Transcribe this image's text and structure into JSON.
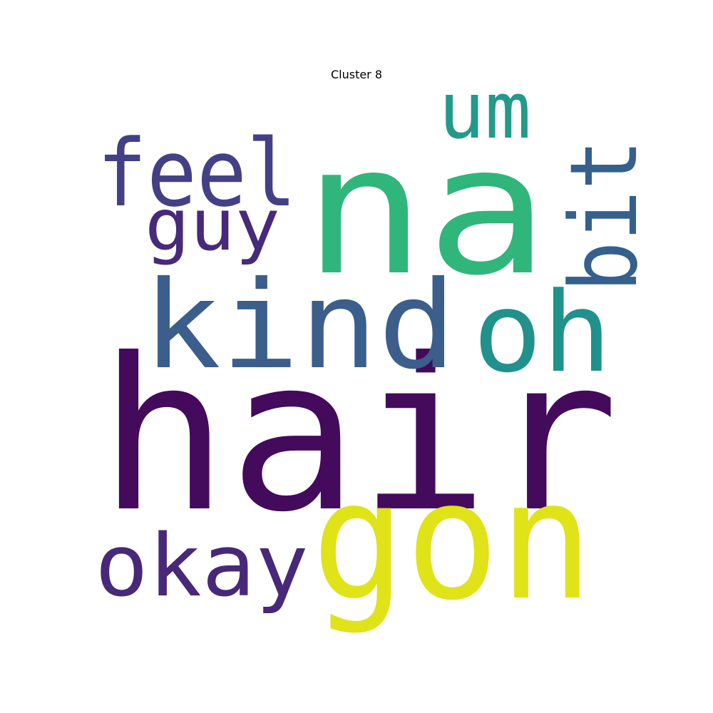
{
  "title": "Cluster 8",
  "words": [
    {
      "text": "hair",
      "color": "#440a5c"
    },
    {
      "text": "na",
      "color": "#30b67b"
    },
    {
      "text": "gon",
      "color": "#dfe318"
    },
    {
      "text": "kind",
      "color": "#3b5e8b"
    },
    {
      "text": "oh",
      "color": "#21918c"
    },
    {
      "text": "feel",
      "color": "#424186"
    },
    {
      "text": "um",
      "color": "#23998a"
    },
    {
      "text": "bit",
      "color": "#35608d"
    },
    {
      "text": "guy",
      "color": "#472a79"
    },
    {
      "text": "okay",
      "color": "#482878"
    }
  ]
}
